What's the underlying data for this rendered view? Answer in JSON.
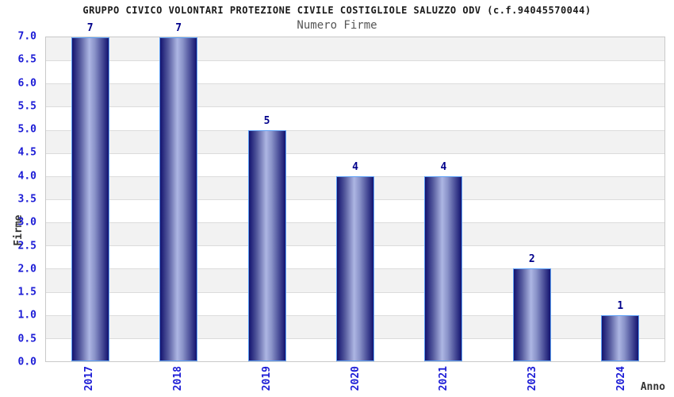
{
  "title": "GRUPPO CIVICO VOLONTARI PROTEZIONE CIVILE COSTIGLIOLE SALUZZO ODV (c.f.94045570044)",
  "subtitle": "Numero Firme",
  "chart_data": {
    "type": "bar",
    "title": "Numero Firme",
    "categories": [
      "2017",
      "2018",
      "2019",
      "2020",
      "2021",
      "2023",
      "2024"
    ],
    "values": [
      7,
      7,
      5,
      4,
      4,
      2,
      1
    ],
    "bar_labels": [
      "7",
      "7",
      "5",
      "4",
      "4",
      "2",
      "1"
    ],
    "xlabel": "Anno",
    "ylabel": "Firme",
    "ylim": [
      0,
      7
    ],
    "ytick_step": 0.5,
    "ytick_format_decimals": 1,
    "grid": "horizontal-bands-alternating",
    "legend": "none",
    "x_tick_rotation_degrees": 90
  },
  "colors": {
    "bar_gradient_dark": "#13136f",
    "bar_gradient_light": "#adb6e3",
    "bar_outline": "#5ea0f5",
    "value_label": "#00008b",
    "tick_label_blue": "#1c1cd6",
    "band_gray": "#f2f2f2",
    "band_white": "#ffffff",
    "gridline": "#dcdcdc",
    "plot_border": "#c9c9c9",
    "title_color": "#1a1a1a",
    "subtitle_color": "#555555",
    "axis_title_color": "#333333",
    "background": "#ffffff"
  }
}
